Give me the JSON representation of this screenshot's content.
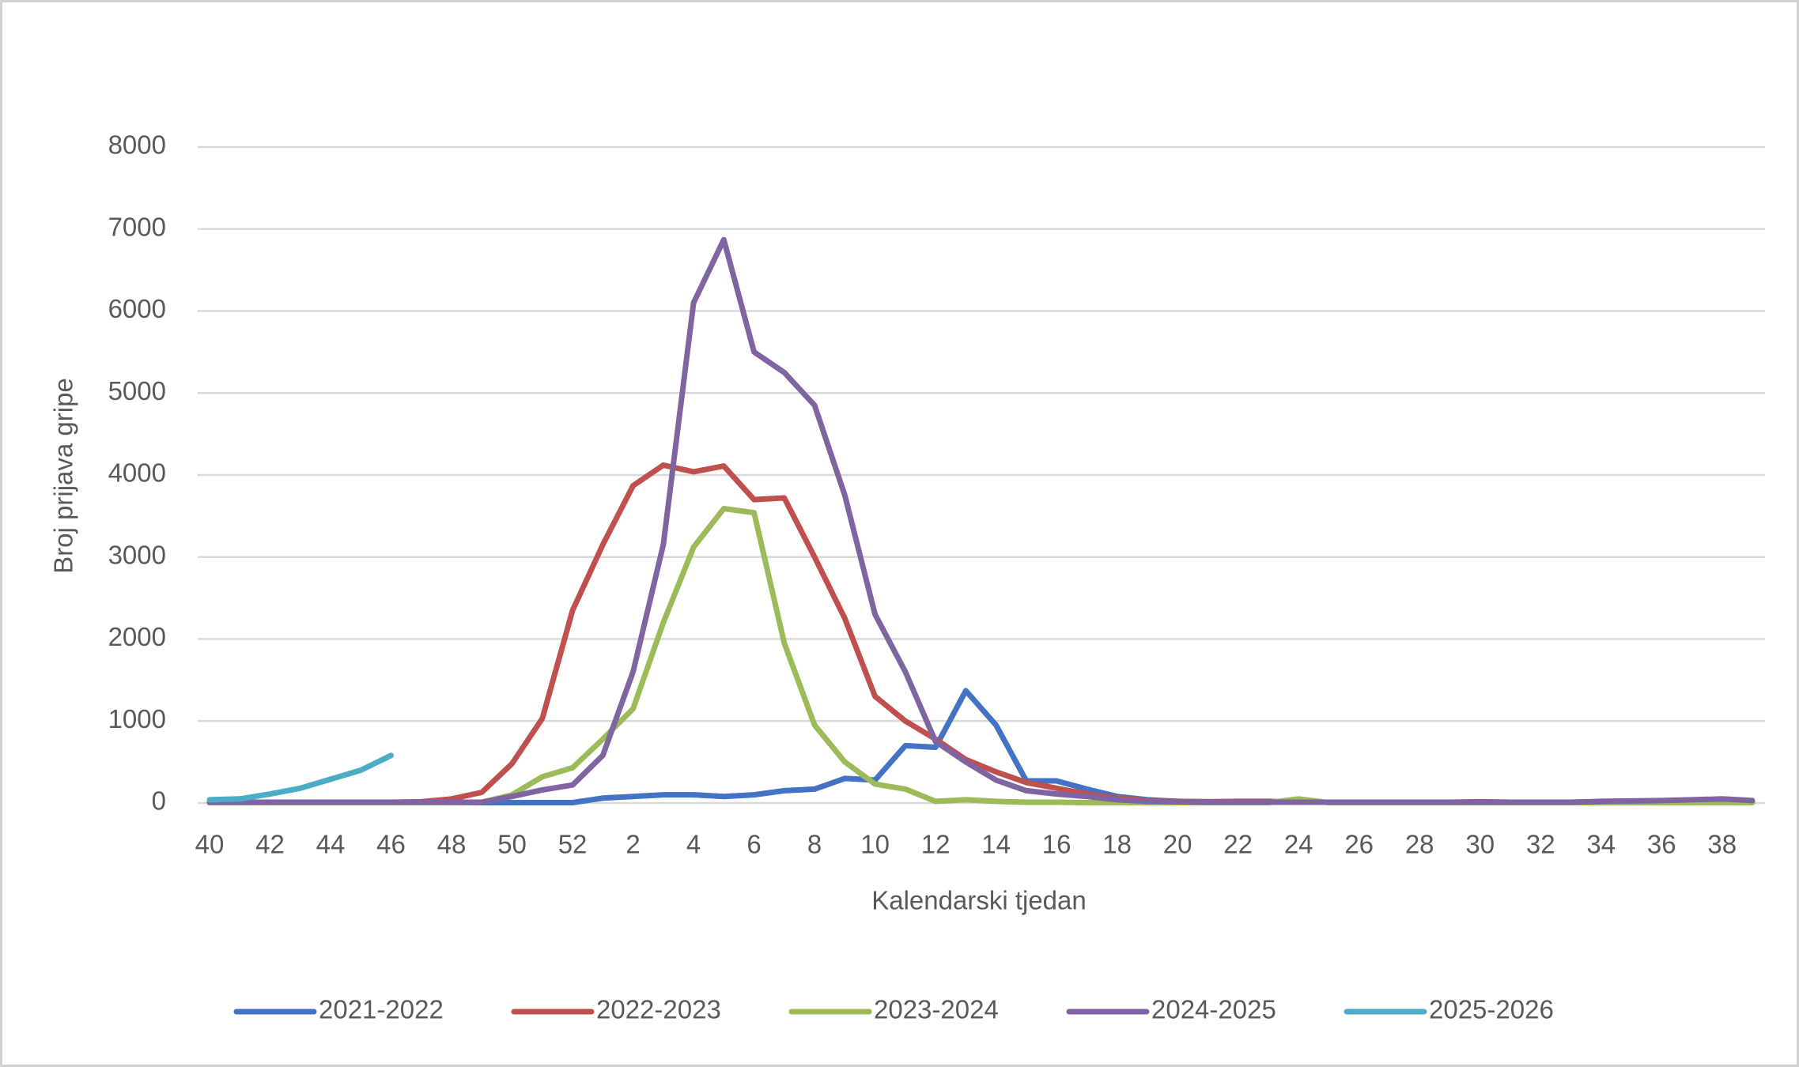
{
  "chart_data": {
    "type": "line",
    "x_label": "Kalendarski tjedan",
    "y_label": "Broj prijava gripe",
    "categories": [
      "40",
      null,
      "42",
      null,
      "44",
      null,
      "46",
      null,
      "48",
      null,
      "50",
      null,
      "52",
      null,
      "2",
      null,
      "4",
      null,
      "6",
      null,
      "8",
      null,
      "10",
      null,
      "12",
      null,
      "14",
      null,
      "16",
      null,
      "18",
      null,
      "20",
      null,
      "22",
      null,
      "24",
      null,
      "26",
      null,
      "28",
      null,
      "30",
      null,
      "32",
      null,
      "34",
      null,
      "36",
      null,
      "38",
      null
    ],
    "series": [
      {
        "name": "2021-2022",
        "color": "#4472c4",
        "values": [
          5,
          5,
          5,
          5,
          5,
          5,
          5,
          5,
          5,
          5,
          5,
          5,
          5,
          60,
          80,
          100,
          100,
          80,
          100,
          150,
          170,
          300,
          280,
          700,
          680,
          1370,
          950,
          270,
          270,
          170,
          80,
          40,
          20,
          15,
          10,
          10,
          10,
          10,
          10,
          10,
          10,
          10,
          10,
          10,
          10,
          10,
          10,
          10,
          10,
          10,
          10,
          10
        ]
      },
      {
        "name": "2022-2023",
        "color": "#c0504d",
        "values": [
          5,
          5,
          5,
          5,
          10,
          10,
          10,
          15,
          50,
          130,
          480,
          1030,
          2350,
          3150,
          3870,
          4120,
          4040,
          4110,
          3700,
          3720,
          3000,
          2250,
          1300,
          1000,
          780,
          530,
          380,
          250,
          180,
          110,
          60,
          30,
          20,
          15,
          20,
          20,
          10,
          10,
          10,
          10,
          10,
          10,
          15,
          10,
          10,
          10,
          15,
          15,
          20,
          20,
          20,
          10
        ]
      },
      {
        "name": "2023-2024",
        "color": "#9bbb59",
        "values": [
          5,
          5,
          5,
          5,
          5,
          5,
          5,
          5,
          5,
          10,
          100,
          320,
          430,
          780,
          1150,
          2200,
          3120,
          3590,
          3540,
          1950,
          950,
          500,
          230,
          170,
          20,
          40,
          20,
          10,
          10,
          5,
          5,
          5,
          5,
          5,
          5,
          5,
          50,
          5,
          5,
          5,
          5,
          5,
          5,
          5,
          5,
          5,
          5,
          5,
          5,
          5,
          5,
          5
        ]
      },
      {
        "name": "2024-2025",
        "color": "#8064a2",
        "values": [
          10,
          10,
          10,
          10,
          10,
          10,
          10,
          10,
          10,
          10,
          80,
          160,
          220,
          580,
          1600,
          3150,
          6100,
          6870,
          5500,
          5250,
          4850,
          3750,
          2300,
          1600,
          750,
          500,
          280,
          150,
          110,
          80,
          40,
          20,
          15,
          10,
          10,
          10,
          10,
          10,
          10,
          10,
          10,
          10,
          10,
          10,
          10,
          10,
          20,
          25,
          30,
          40,
          50,
          30
        ]
      },
      {
        "name": "2025-2026",
        "color": "#4bacc6",
        "values": [
          40,
          50,
          110,
          180,
          290,
          400,
          580,
          null,
          null,
          null,
          null,
          null,
          null,
          null,
          null,
          null,
          null,
          null,
          null,
          null,
          null,
          null,
          null,
          null,
          null,
          null,
          null,
          null,
          null,
          null,
          null,
          null,
          null,
          null,
          null,
          null,
          null,
          null,
          null,
          null,
          null,
          null,
          null,
          null,
          null,
          null,
          null,
          null,
          null,
          null,
          null,
          null
        ]
      }
    ],
    "ylim": [
      0,
      8000
    ],
    "yticks": [
      0,
      1000,
      2000,
      3000,
      4000,
      5000,
      6000,
      7000,
      8000
    ],
    "grid": true,
    "legend": "bottom"
  }
}
